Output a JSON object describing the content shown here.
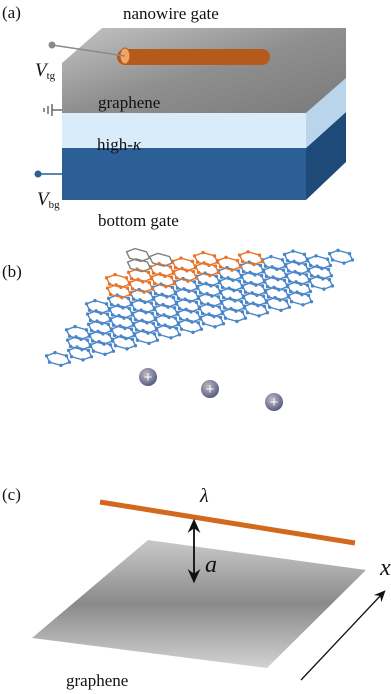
{
  "panel_a": {
    "label": "(a)",
    "nanowire_gate": "nanowire gate",
    "vtg_main": "V",
    "vtg_sub": "tg",
    "graphene": "graphene",
    "high_k": "high-",
    "kappa": "κ",
    "vbg_main": "V",
    "vbg_sub": "bg",
    "bottom_gate": "bottom gate",
    "colors": {
      "nanowire": "#e07a30",
      "graphene_top": "#9a9a9a",
      "high_k": "#d6eaf8",
      "bottom_gate": "#2c5f96"
    }
  },
  "panel_b": {
    "label": "(b)",
    "colors": {
      "gray_lattice": "#808080",
      "orange_lattice": "#e8742a",
      "blue_lattice": "#4a86c8",
      "charge": "#7d7fa0"
    },
    "charge_symbol": "+"
  },
  "panel_c": {
    "label": "(c)",
    "lambda": "λ",
    "a": "a",
    "x": "x",
    "graphene": "graphene"
  }
}
